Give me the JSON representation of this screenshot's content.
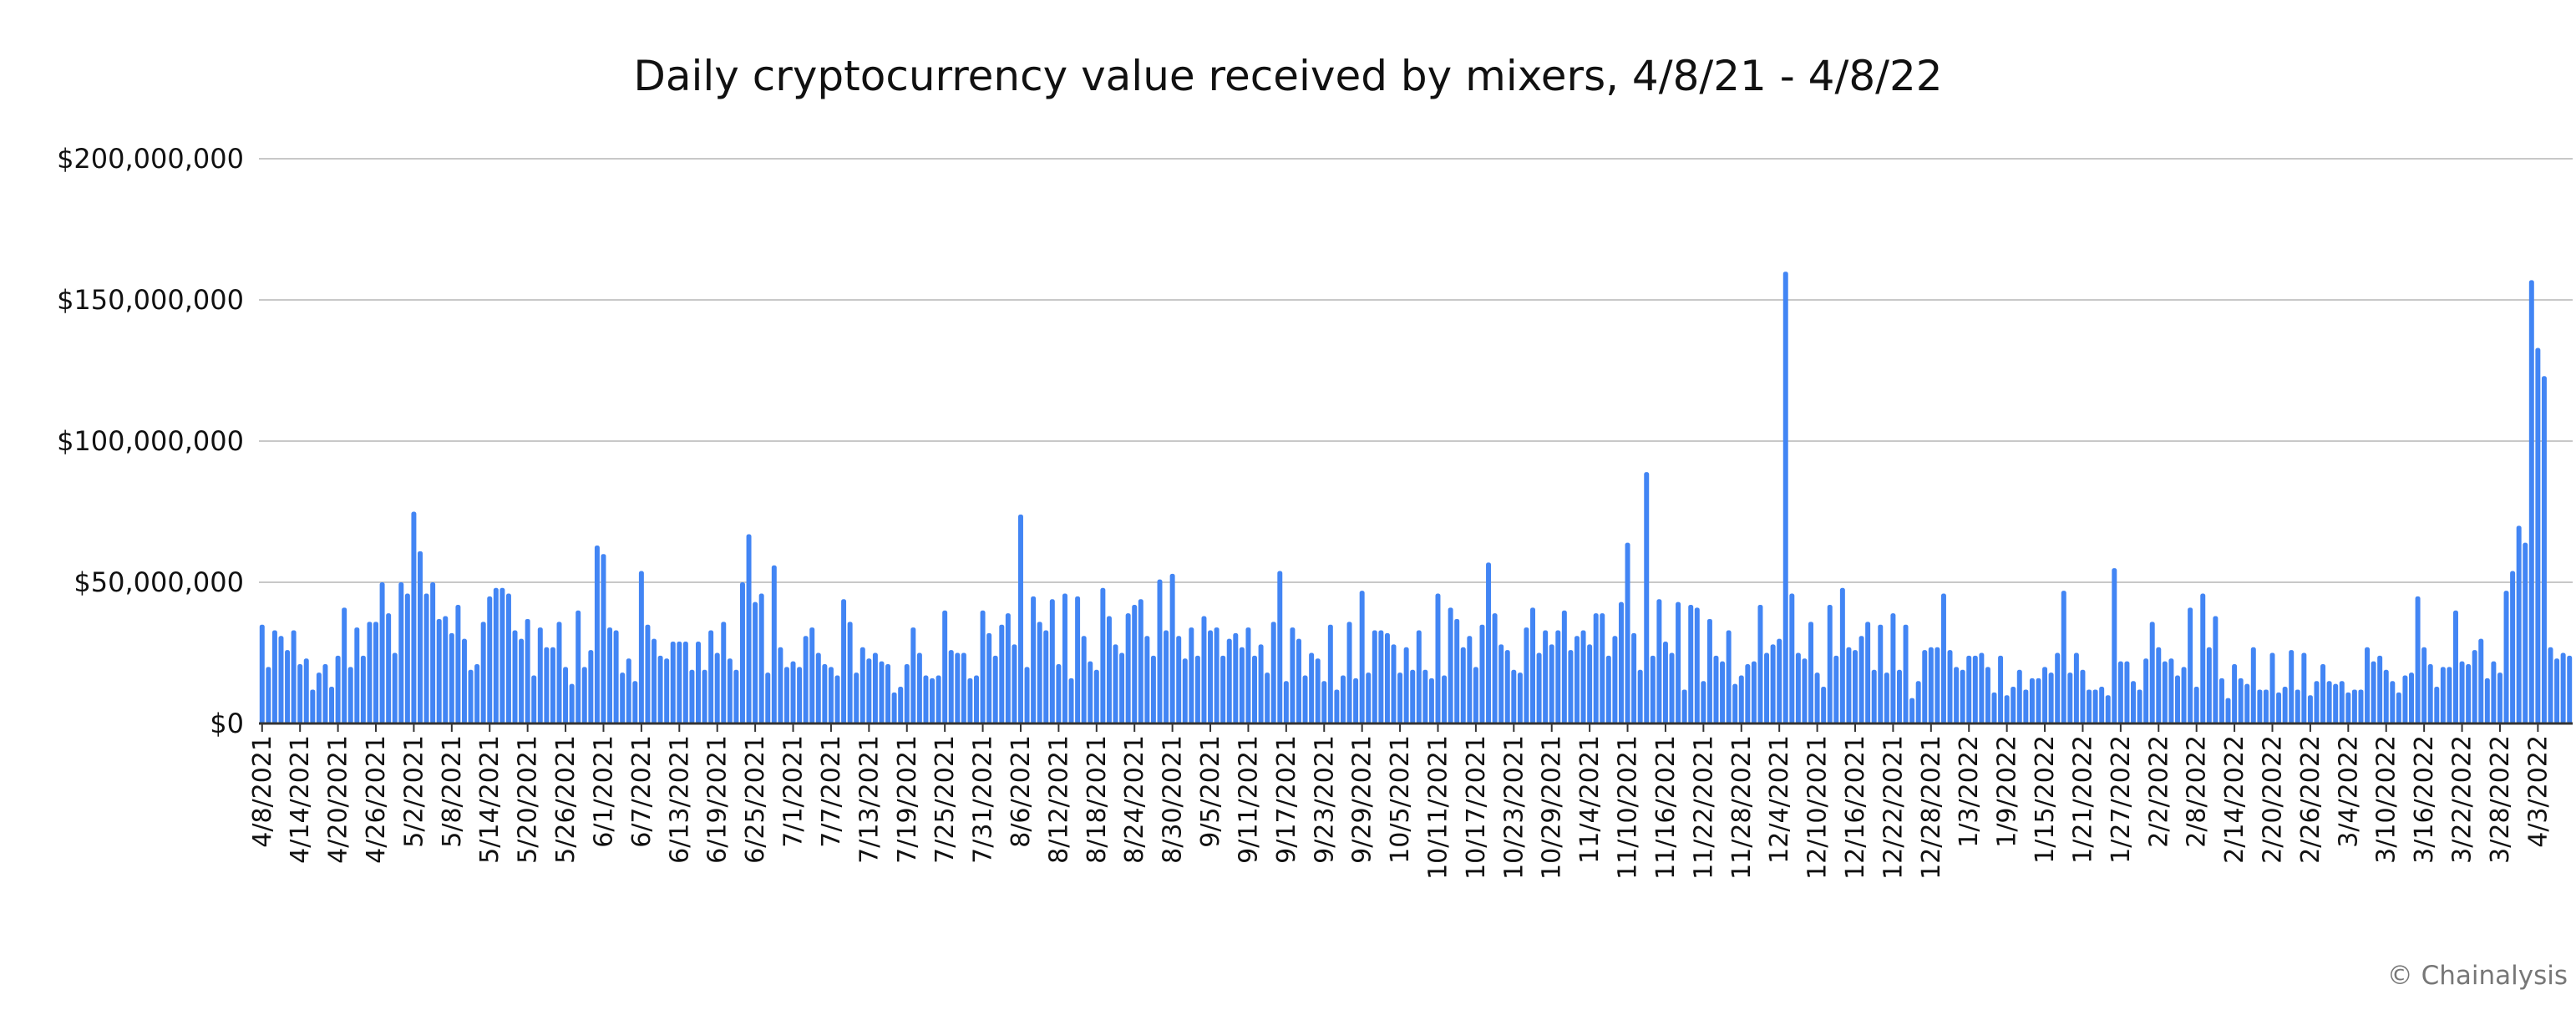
{
  "chart_data": {
    "type": "bar",
    "title": "Daily cryptocurrency value received by mixers, 4/8/21 - 4/8/22",
    "xlabel": "",
    "ylabel": "",
    "start_date": "4/8/2021",
    "end_date": "4/8/2022",
    "value_scale": 1000000,
    "ylim": [
      0,
      200000000
    ],
    "y_ticks": [
      0,
      50000000,
      100000000,
      150000000,
      200000000
    ],
    "y_tick_labels": [
      "$0",
      "$50,000,000",
      "$100,000,000",
      "$150,000,000",
      "$200,000,000"
    ],
    "grid": true,
    "bar_color": "#4285f4",
    "x_tick_labels": [
      "4/8/2021",
      "4/14/2021",
      "4/20/2021",
      "4/26/2021",
      "5/2/2021",
      "5/8/2021",
      "5/14/2021",
      "5/20/2021",
      "5/26/2021",
      "6/1/2021",
      "6/7/2021",
      "6/13/2021",
      "6/19/2021",
      "6/25/2021",
      "7/1/2021",
      "7/7/2021",
      "7/13/2021",
      "7/19/2021",
      "7/25/2021",
      "7/31/2021",
      "8/6/2021",
      "8/12/2021",
      "8/18/2021",
      "8/24/2021",
      "8/30/2021",
      "9/5/2021",
      "9/11/2021",
      "9/17/2021",
      "9/23/2021",
      "9/29/2021",
      "10/5/2021",
      "10/11/2021",
      "10/17/2021",
      "10/23/2021",
      "10/29/2021",
      "11/4/2021",
      "11/10/2021",
      "11/16/2021",
      "11/22/2021",
      "11/28/2021",
      "12/4/2021",
      "12/10/2021",
      "12/16/2021",
      "12/22/2021",
      "12/28/2021",
      "1/3/2022",
      "1/9/2022",
      "1/15/2022",
      "1/21/2022",
      "1/27/2022",
      "2/2/2022",
      "2/8/2022",
      "2/14/2022",
      "2/20/2022",
      "2/26/2022",
      "3/4/2022",
      "3/10/2022",
      "3/16/2022",
      "3/22/2022",
      "3/28/2022",
      "4/3/2022"
    ],
    "values_millions": [
      35,
      20,
      33,
      31,
      26,
      33,
      21,
      23,
      12,
      18,
      21,
      13,
      24,
      41,
      20,
      34,
      24,
      36,
      36,
      50,
      39,
      25,
      50,
      46,
      75,
      61,
      46,
      50,
      37,
      38,
      32,
      42,
      30,
      19,
      21,
      36,
      45,
      48,
      48,
      46,
      33,
      30,
      37,
      17,
      34,
      27,
      27,
      36,
      20,
      14,
      40,
      20,
      26,
      63,
      60,
      34,
      33,
      18,
      23,
      15,
      54,
      35,
      30,
      24,
      23,
      29,
      29,
      29,
      19,
      29,
      19,
      33,
      25,
      36,
      23,
      19,
      50,
      67,
      43,
      46,
      18,
      56,
      27,
      20,
      22,
      20,
      31,
      34,
      25,
      21,
      20,
      17,
      44,
      36,
      18,
      27,
      23,
      25,
      22,
      21,
      11,
      13,
      21,
      34,
      25,
      17,
      16,
      17,
      40,
      26,
      25,
      25,
      16,
      17,
      40,
      32,
      24,
      35,
      39,
      28,
      74,
      20,
      45,
      36,
      33,
      44,
      21,
      46,
      16,
      45,
      31,
      22,
      19,
      48,
      38,
      28,
      25,
      39,
      42,
      44,
      31,
      24,
      51,
      33,
      53,
      31,
      23,
      34,
      24,
      38,
      33,
      34,
      24,
      30,
      32,
      27,
      34,
      24,
      28,
      18,
      36,
      54,
      15,
      34,
      30,
      17,
      25,
      23,
      15,
      35,
      12,
      17,
      36,
      16,
      47,
      18,
      33,
      33,
      32,
      28,
      18,
      27,
      19,
      33,
      19,
      16,
      46,
      17,
      41,
      37,
      27,
      31,
      20,
      35,
      57,
      39,
      28,
      26,
      19,
      18,
      34,
      41,
      25,
      33,
      28,
      33,
      40,
      26,
      31,
      33,
      28,
      39,
      39,
      24,
      31,
      43,
      64,
      32,
      19,
      89,
      24,
      44,
      29,
      25,
      43,
      12,
      42,
      41,
      15,
      37,
      24,
      22,
      33,
      14,
      17,
      21,
      22,
      42,
      25,
      28,
      30,
      160,
      46,
      25,
      23,
      36,
      18,
      13,
      42,
      24,
      48,
      27,
      26,
      31,
      36,
      19,
      35,
      18,
      39,
      19,
      35,
      9,
      15,
      26,
      27,
      27,
      46,
      26,
      20,
      19,
      24,
      24,
      25,
      20,
      11,
      24,
      10,
      13,
      19,
      12,
      16,
      16,
      20,
      18,
      25,
      47,
      18,
      25,
      19,
      12,
      12,
      13,
      10,
      55,
      22,
      22,
      15,
      12,
      23,
      36,
      27,
      22,
      23,
      17,
      20,
      41,
      13,
      46,
      27,
      38,
      16,
      9,
      21,
      16,
      14,
      27,
      12,
      12,
      25,
      11,
      13,
      26,
      12,
      25,
      10,
      15,
      21,
      15,
      14,
      15,
      11,
      12,
      12,
      27,
      22,
      24,
      19,
      15,
      11,
      17,
      18,
      45,
      27,
      21,
      13,
      20,
      20,
      40,
      22,
      21,
      26,
      30,
      16,
      22,
      18,
      47,
      54,
      70,
      64,
      157,
      133,
      123,
      27,
      23,
      25,
      24
    ]
  },
  "credit": "© Chainalysis"
}
